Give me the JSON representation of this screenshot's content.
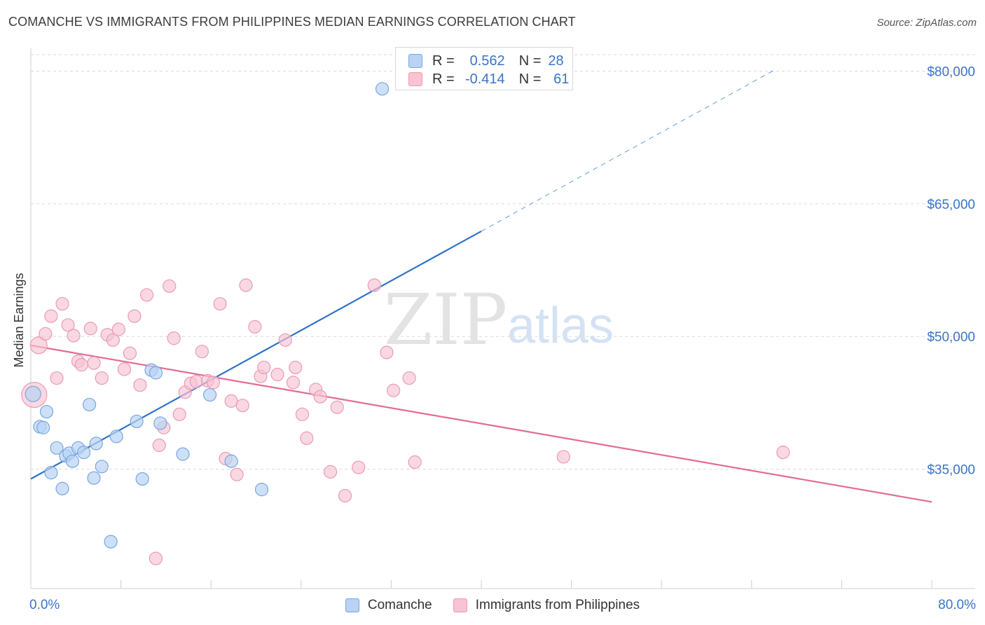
{
  "title": "COMANCHE VS IMMIGRANTS FROM PHILIPPINES MEDIAN EARNINGS CORRELATION CHART",
  "source": "Source: ZipAtlas.com",
  "watermark": {
    "zip": "ZIP",
    "atlas": "atlas"
  },
  "colors": {
    "blue_fill": "#b8d3f3",
    "blue_stroke": "#7aa6de",
    "blue_line": "#2f72c9",
    "pink_fill": "#f8c3d3",
    "pink_stroke": "#ea9ab5",
    "pink_line": "#e46b93",
    "axis_label": "#3a74c8",
    "grid": "#d9d9d9"
  },
  "legend": {
    "r_label": "R =",
    "n_label": "N =",
    "series": [
      {
        "r": "0.562",
        "n": "28"
      },
      {
        "r": "-0.414",
        "n": "61"
      }
    ]
  },
  "chart_data": {
    "type": "scatter",
    "title": "COMANCHE VS IMMIGRANTS FROM PHILIPPINES MEDIAN EARNINGS CORRELATION CHART",
    "xlabel": "",
    "ylabel": "Median Earnings",
    "xlim": [
      0,
      80
    ],
    "ylim": [
      21500,
      82500
    ],
    "x_tick_labels": [
      "0.0%",
      "80.0%"
    ],
    "y_ticks": [
      35000,
      50000,
      65000,
      80000
    ],
    "y_tick_labels": [
      "$35,000",
      "$50,000",
      "$65,000",
      "$80,000"
    ],
    "grid": true,
    "series": [
      {
        "name": "Comanche",
        "color": "blue",
        "points": [
          [
            0.2,
            43500
          ],
          [
            0.8,
            39800
          ],
          [
            1.1,
            39700
          ],
          [
            1.4,
            41500
          ],
          [
            1.8,
            34600
          ],
          [
            2.3,
            37400
          ],
          [
            2.8,
            32800
          ],
          [
            3.1,
            36500
          ],
          [
            3.4,
            36800
          ],
          [
            3.7,
            35900
          ],
          [
            4.2,
            37400
          ],
          [
            4.7,
            36900
          ],
          [
            5.2,
            42300
          ],
          [
            5.6,
            34000
          ],
          [
            5.8,
            37900
          ],
          [
            6.3,
            35300
          ],
          [
            7.1,
            26800
          ],
          [
            7.6,
            38700
          ],
          [
            9.4,
            40400
          ],
          [
            9.9,
            33900
          ],
          [
            10.7,
            46200
          ],
          [
            11.1,
            45900
          ],
          [
            11.5,
            40200
          ],
          [
            13.5,
            36700
          ],
          [
            15.9,
            43400
          ],
          [
            17.8,
            35900
          ],
          [
            20.5,
            32700
          ],
          [
            31.2,
            78000
          ]
        ],
        "trend": {
          "x": [
            0,
            40
          ],
          "y": [
            33900,
            61900
          ]
        },
        "trend_dashed": {
          "x": [
            40,
            66
          ],
          "y": [
            61900,
            80100
          ]
        }
      },
      {
        "name": "Immigrants from Philippines",
        "color": "pink",
        "points": [
          [
            0.3,
            43400
          ],
          [
            0.7,
            49000
          ],
          [
            1.3,
            50300
          ],
          [
            1.8,
            52300
          ],
          [
            2.3,
            45300
          ],
          [
            2.8,
            53700
          ],
          [
            3.3,
            51300
          ],
          [
            3.8,
            50100
          ],
          [
            4.2,
            47200
          ],
          [
            4.5,
            46800
          ],
          [
            5.3,
            50900
          ],
          [
            5.6,
            47000
          ],
          [
            6.3,
            45300
          ],
          [
            6.8,
            50200
          ],
          [
            7.3,
            49600
          ],
          [
            7.8,
            50800
          ],
          [
            8.3,
            46300
          ],
          [
            8.8,
            48100
          ],
          [
            9.2,
            52300
          ],
          [
            9.7,
            44500
          ],
          [
            10.3,
            54700
          ],
          [
            11.1,
            24900
          ],
          [
            11.4,
            37700
          ],
          [
            11.8,
            39700
          ],
          [
            12.3,
            55700
          ],
          [
            12.7,
            49800
          ],
          [
            13.2,
            41200
          ],
          [
            13.7,
            43700
          ],
          [
            14.2,
            44700
          ],
          [
            14.7,
            44900
          ],
          [
            15.2,
            48300
          ],
          [
            15.7,
            45000
          ],
          [
            16.2,
            44800
          ],
          [
            16.8,
            53700
          ],
          [
            17.3,
            36200
          ],
          [
            17.8,
            42700
          ],
          [
            18.3,
            34400
          ],
          [
            18.8,
            42200
          ],
          [
            19.1,
            55800
          ],
          [
            19.9,
            51100
          ],
          [
            20.4,
            45500
          ],
          [
            20.7,
            46500
          ],
          [
            21.9,
            45700
          ],
          [
            22.6,
            49600
          ],
          [
            23.3,
            44800
          ],
          [
            23.5,
            46500
          ],
          [
            24.1,
            41200
          ],
          [
            24.5,
            38500
          ],
          [
            25.3,
            44000
          ],
          [
            25.7,
            43200
          ],
          [
            26.6,
            34700
          ],
          [
            27.2,
            42000
          ],
          [
            27.9,
            32000
          ],
          [
            29.1,
            35200
          ],
          [
            30.5,
            55800
          ],
          [
            31.6,
            48200
          ],
          [
            32.2,
            43900
          ],
          [
            33.6,
            45300
          ],
          [
            34.1,
            35800
          ],
          [
            47.3,
            36400
          ],
          [
            66.8,
            36900
          ]
        ],
        "trend": {
          "x": [
            0,
            80
          ],
          "y": [
            49000,
            31300
          ]
        }
      }
    ]
  },
  "bottom_legend": [
    "Comanche",
    "Immigrants from Philippines"
  ]
}
